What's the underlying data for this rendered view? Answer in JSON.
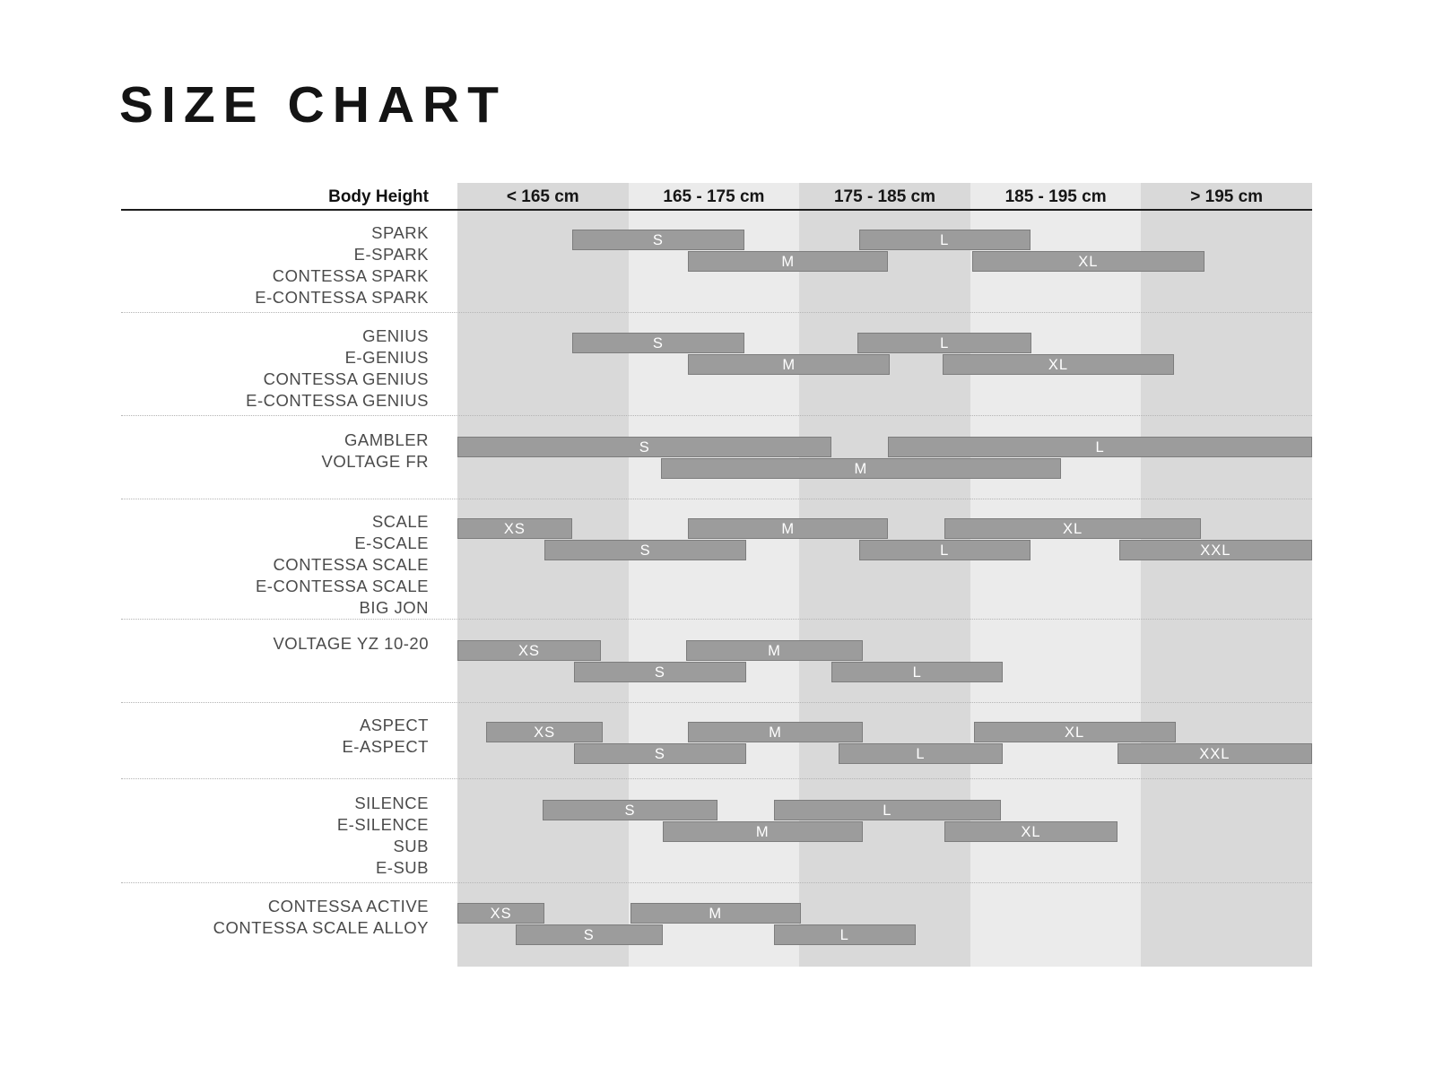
{
  "title": "SIZE CHART",
  "chart_data": {
    "type": "bar",
    "title": "SIZE CHART",
    "xlabel": "Body Height",
    "ylabel": "",
    "axis": {
      "label": "Body Height",
      "columns": [
        "< 165 cm",
        "165 - 175 cm",
        "175 - 185 cm",
        "185 - 195 cm",
        "> 195 cm"
      ],
      "range_cm": [
        155,
        205
      ],
      "column_width_cm": 10,
      "grid": "alternating column shading",
      "legend": "none"
    },
    "colors": {
      "band_dark": "#d9d9d9",
      "band_light": "#ebebeb",
      "bar_fill": "#9c9c9c",
      "bar_border": "#7d7d7d",
      "bar_text": "#ffffff",
      "header_text": "#161616",
      "model_text": "#4b4b4b",
      "title_text": "#141414"
    },
    "groups": [
      {
        "models": [
          "SPARK",
          "E-SPARK",
          "CONTESSA SPARK",
          "E-CONTESSA SPARK"
        ],
        "bars": [
          {
            "size": "S",
            "from_cm": 161.7,
            "to_cm": 171.8,
            "row": 0
          },
          {
            "size": "M",
            "from_cm": 168.5,
            "to_cm": 180.2,
            "row": 1
          },
          {
            "size": "L",
            "from_cm": 178.5,
            "to_cm": 188.5,
            "row": 0
          },
          {
            "size": "XL",
            "from_cm": 185.1,
            "to_cm": 198.7,
            "row": 1
          }
        ]
      },
      {
        "models": [
          "GENIUS",
          "E-GENIUS",
          "CONTESSA GENIUS",
          "E-CONTESSA GENIUS"
        ],
        "bars": [
          {
            "size": "S",
            "from_cm": 161.7,
            "to_cm": 171.8,
            "row": 0
          },
          {
            "size": "M",
            "from_cm": 168.5,
            "to_cm": 180.3,
            "row": 1
          },
          {
            "size": "L",
            "from_cm": 178.4,
            "to_cm": 188.6,
            "row": 0
          },
          {
            "size": "XL",
            "from_cm": 183.4,
            "to_cm": 196.9,
            "row": 1
          }
        ]
      },
      {
        "models": [
          "GAMBLER",
          "VOLTAGE FR"
        ],
        "bars": [
          {
            "size": "S",
            "from_cm": 155.0,
            "to_cm": 176.9,
            "row": 0
          },
          {
            "size": "M",
            "from_cm": 166.9,
            "to_cm": 190.3,
            "row": 1
          },
          {
            "size": "L",
            "from_cm": 180.2,
            "to_cm": 205.0,
            "row": 0
          }
        ]
      },
      {
        "models": [
          "SCALE",
          "E-SCALE",
          "CONTESSA SCALE",
          "E-CONTESSA SCALE",
          "BIG JON"
        ],
        "bars": [
          {
            "size": "XS",
            "from_cm": 155.0,
            "to_cm": 161.7,
            "row": 0
          },
          {
            "size": "S",
            "from_cm": 160.1,
            "to_cm": 171.9,
            "row": 1
          },
          {
            "size": "M",
            "from_cm": 168.5,
            "to_cm": 180.2,
            "row": 0
          },
          {
            "size": "L",
            "from_cm": 178.5,
            "to_cm": 188.5,
            "row": 1
          },
          {
            "size": "XL",
            "from_cm": 183.5,
            "to_cm": 198.5,
            "row": 0
          },
          {
            "size": "XXL",
            "from_cm": 193.7,
            "to_cm": 205.0,
            "row": 1
          }
        ]
      },
      {
        "models": [
          "VOLTAGE YZ 10-20"
        ],
        "bars": [
          {
            "size": "XS",
            "from_cm": 155.0,
            "to_cm": 163.4,
            "row": 0
          },
          {
            "size": "S",
            "from_cm": 161.8,
            "to_cm": 171.9,
            "row": 1
          },
          {
            "size": "M",
            "from_cm": 168.4,
            "to_cm": 178.7,
            "row": 0
          },
          {
            "size": "L",
            "from_cm": 176.9,
            "to_cm": 186.9,
            "row": 1
          }
        ]
      },
      {
        "models": [
          "ASPECT",
          "E-ASPECT"
        ],
        "bars": [
          {
            "size": "XS",
            "from_cm": 156.7,
            "to_cm": 163.5,
            "row": 0
          },
          {
            "size": "S",
            "from_cm": 161.8,
            "to_cm": 171.9,
            "row": 1
          },
          {
            "size": "M",
            "from_cm": 168.5,
            "to_cm": 178.7,
            "row": 0
          },
          {
            "size": "L",
            "from_cm": 177.3,
            "to_cm": 186.9,
            "row": 1
          },
          {
            "size": "XL",
            "from_cm": 185.2,
            "to_cm": 197.0,
            "row": 0
          },
          {
            "size": "XXL",
            "from_cm": 193.6,
            "to_cm": 205.0,
            "row": 1
          }
        ]
      },
      {
        "models": [
          "SILENCE",
          "E-SILENCE",
          "SUB",
          "E-SUB"
        ],
        "bars": [
          {
            "size": "S",
            "from_cm": 160.0,
            "to_cm": 170.2,
            "row": 0
          },
          {
            "size": "M",
            "from_cm": 167.0,
            "to_cm": 178.7,
            "row": 1
          },
          {
            "size": "L",
            "from_cm": 173.5,
            "to_cm": 186.8,
            "row": 0
          },
          {
            "size": "XL",
            "from_cm": 183.5,
            "to_cm": 193.6,
            "row": 1
          }
        ]
      },
      {
        "models": [
          "CONTESSA ACTIVE",
          "CONTESSA SCALE ALLOY"
        ],
        "bars": [
          {
            "size": "XS",
            "from_cm": 155.0,
            "to_cm": 160.1,
            "row": 0
          },
          {
            "size": "S",
            "from_cm": 158.4,
            "to_cm": 167.0,
            "row": 1
          },
          {
            "size": "M",
            "from_cm": 165.1,
            "to_cm": 175.1,
            "row": 0
          },
          {
            "size": "L",
            "from_cm": 173.5,
            "to_cm": 181.8,
            "row": 1
          }
        ]
      }
    ]
  }
}
